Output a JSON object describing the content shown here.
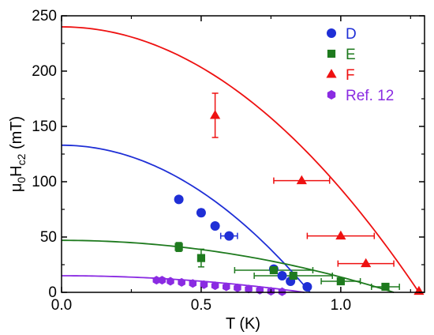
{
  "chart_data": {
    "type": "scatter",
    "xlabel": "T (K)",
    "ylabel": {
      "base": "μ",
      "sub0": "0",
      "mid": "H",
      "sub1": "c2",
      "unit": " (mT)"
    },
    "xlim": [
      0.0,
      1.3
    ],
    "ylim": [
      0,
      250
    ],
    "xticks": [
      0.0,
      0.5,
      1.0
    ],
    "yticks": [
      0,
      50,
      100,
      150,
      200,
      250
    ],
    "xtick_labels": [
      "0.0",
      "0.5",
      "1.0"
    ],
    "ytick_labels": [
      "0",
      "50",
      "100",
      "150",
      "200",
      "250"
    ],
    "legend_position": "top-right",
    "series": [
      {
        "name": "D",
        "marker": "circle",
        "color": "#1f2fd6",
        "fit": {
          "Hc2_0": 133,
          "Tc": 0.89
        },
        "points": [
          {
            "x": 0.42,
            "y": 84,
            "xerr": 0,
            "yerr": 2
          },
          {
            "x": 0.5,
            "y": 72,
            "xerr": 0,
            "yerr": 3
          },
          {
            "x": 0.55,
            "y": 60,
            "xerr": 0,
            "yerr": 2
          },
          {
            "x": 0.6,
            "y": 51,
            "xerr": 0.03,
            "yerr": 2
          },
          {
            "x": 0.76,
            "y": 21,
            "xerr": 0,
            "yerr": 2
          },
          {
            "x": 0.79,
            "y": 15,
            "xerr": 0,
            "yerr": 2
          },
          {
            "x": 0.82,
            "y": 10,
            "xerr": 0,
            "yerr": 2
          },
          {
            "x": 0.88,
            "y": 5,
            "xerr": 0,
            "yerr": 2
          }
        ]
      },
      {
        "name": "E",
        "marker": "square",
        "color": "#1e7a1e",
        "fit": {
          "Hc2_0": 47,
          "Tc": 1.19
        },
        "points": [
          {
            "x": 0.42,
            "y": 41,
            "xerr": 0,
            "yerr": 4
          },
          {
            "x": 0.5,
            "y": 31,
            "xerr": 0,
            "yerr": 8
          },
          {
            "x": 0.76,
            "y": 20,
            "xerr": 0.14,
            "yerr": 0
          },
          {
            "x": 0.83,
            "y": 15,
            "xerr": 0.14,
            "yerr": 0
          },
          {
            "x": 1.0,
            "y": 10,
            "xerr": 0.07,
            "yerr": 0
          },
          {
            "x": 1.16,
            "y": 5,
            "xerr": 0.05,
            "yerr": 0
          }
        ]
      },
      {
        "name": "F",
        "marker": "triangle",
        "color": "#ee1111",
        "fit": {
          "Hc2_0": 240,
          "Tc": 1.28
        },
        "points": [
          {
            "x": 0.55,
            "y": 160,
            "xerr": 0,
            "yerr": 20
          },
          {
            "x": 0.86,
            "y": 101,
            "xerr": 0.1,
            "yerr": 0
          },
          {
            "x": 1.0,
            "y": 51,
            "xerr": 0.12,
            "yerr": 0
          },
          {
            "x": 1.09,
            "y": 26,
            "xerr": 0.1,
            "yerr": 0
          },
          {
            "x": 1.28,
            "y": 1,
            "xerr": 0,
            "yerr": 0
          }
        ]
      },
      {
        "name": "Ref. 12",
        "marker": "hexagon",
        "color": "#8a2be2",
        "fit": {
          "Hc2_0": 15,
          "Tc": 0.87
        },
        "points": [
          {
            "x": 0.34,
            "y": 11
          },
          {
            "x": 0.36,
            "y": 11
          },
          {
            "x": 0.39,
            "y": 10
          },
          {
            "x": 0.43,
            "y": 9
          },
          {
            "x": 0.47,
            "y": 8
          },
          {
            "x": 0.51,
            "y": 7
          },
          {
            "x": 0.55,
            "y": 6
          },
          {
            "x": 0.59,
            "y": 5
          },
          {
            "x": 0.63,
            "y": 4
          },
          {
            "x": 0.67,
            "y": 3
          },
          {
            "x": 0.71,
            "y": 2
          },
          {
            "x": 0.75,
            "y": 1
          },
          {
            "x": 0.79,
            "y": 0.5
          }
        ]
      }
    ]
  }
}
